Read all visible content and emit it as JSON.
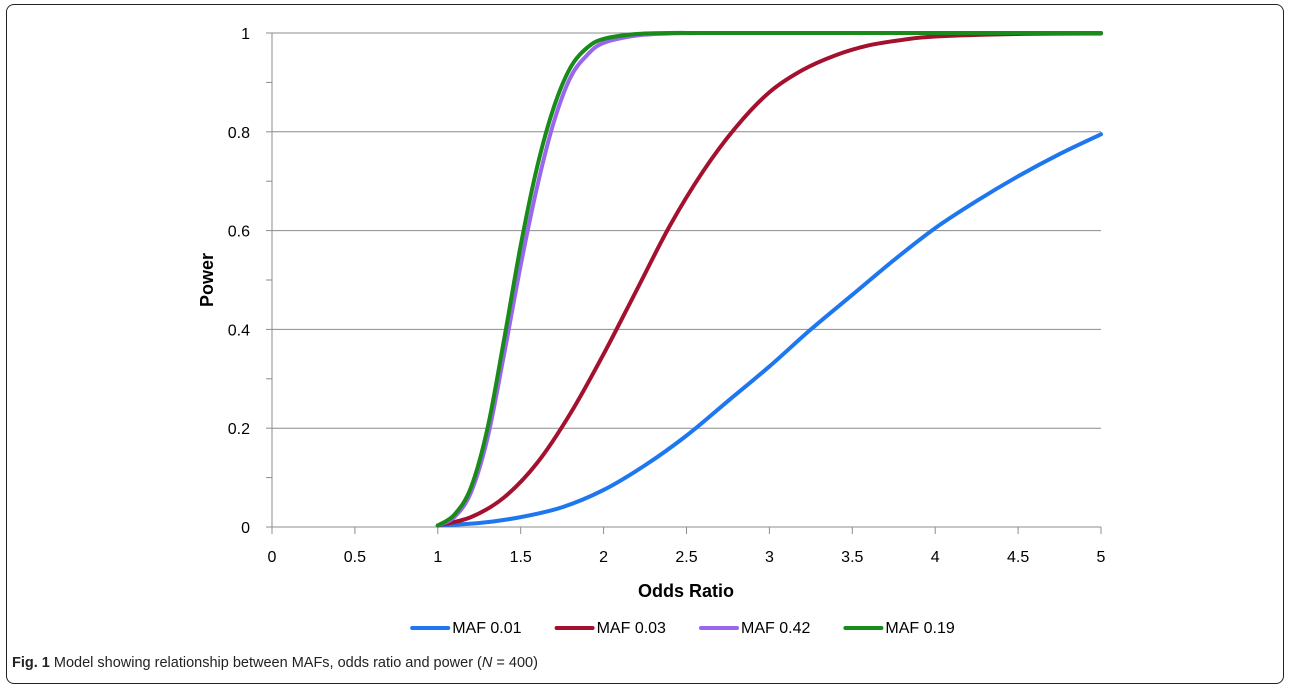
{
  "chart_data": {
    "type": "line",
    "xlabel": "Odds Ratio",
    "ylabel": "Power",
    "xlim": [
      0,
      5
    ],
    "ylim": [
      0,
      1
    ],
    "x_ticks": [
      0,
      0.5,
      1,
      1.5,
      2,
      2.5,
      3,
      3.5,
      4,
      4.5,
      5
    ],
    "x_tick_labels": [
      "0",
      "0.5",
      "1",
      "1.5",
      "2",
      "2.5",
      "3",
      "3.5",
      "4",
      "4.5",
      "5"
    ],
    "y_ticks": [
      0,
      0.2,
      0.4,
      0.6,
      0.8,
      1
    ],
    "y_tick_labels": [
      "0",
      "0.2",
      "0.4",
      "0.6",
      "0.8",
      "1"
    ],
    "grid": "horizontal",
    "legend_position": "bottom",
    "series": [
      {
        "name": "MAF 0.01",
        "color": "#1f77f0",
        "x": [
          1.0,
          1.25,
          1.5,
          1.75,
          2.0,
          2.25,
          2.5,
          2.75,
          3.0,
          3.25,
          3.5,
          3.75,
          4.0,
          4.25,
          4.5,
          4.75,
          5.0
        ],
        "y": [
          0.003,
          0.008,
          0.02,
          0.04,
          0.075,
          0.125,
          0.185,
          0.255,
          0.325,
          0.4,
          0.47,
          0.54,
          0.605,
          0.66,
          0.71,
          0.755,
          0.795
        ]
      },
      {
        "name": "MAF 0.03",
        "color": "#a3112e",
        "x": [
          1.0,
          1.2,
          1.4,
          1.6,
          1.8,
          2.0,
          2.2,
          2.4,
          2.6,
          2.8,
          3.0,
          3.2,
          3.4,
          3.6,
          3.8,
          4.0,
          4.5,
          5.0
        ],
        "y": [
          0.003,
          0.02,
          0.06,
          0.13,
          0.23,
          0.35,
          0.48,
          0.61,
          0.72,
          0.81,
          0.88,
          0.925,
          0.955,
          0.975,
          0.986,
          0.993,
          0.998,
          0.999
        ]
      },
      {
        "name": "MAF 0.42",
        "color": "#9966ee",
        "x": [
          1.0,
          1.1,
          1.2,
          1.3,
          1.4,
          1.5,
          1.6,
          1.7,
          1.8,
          1.9,
          2.0,
          2.2,
          2.4,
          2.6,
          3.0,
          5.0
        ],
        "y": [
          0.003,
          0.02,
          0.07,
          0.18,
          0.35,
          0.53,
          0.69,
          0.82,
          0.91,
          0.955,
          0.98,
          0.995,
          0.999,
          1.0,
          1.0,
          1.0
        ]
      },
      {
        "name": "MAF 0.19",
        "color": "#1a8a1a",
        "x": [
          1.0,
          1.1,
          1.2,
          1.3,
          1.4,
          1.5,
          1.6,
          1.7,
          1.8,
          1.9,
          2.0,
          2.2,
          2.4,
          2.6,
          3.0,
          5.0
        ],
        "y": [
          0.003,
          0.025,
          0.08,
          0.2,
          0.38,
          0.57,
          0.73,
          0.85,
          0.93,
          0.97,
          0.988,
          0.998,
          1.0,
          1.0,
          1.0,
          1.0
        ]
      }
    ]
  },
  "caption": {
    "fig_label": "Fig. 1",
    "text_before_n": " Model showing relationship between MAFs, odds ratio and power (",
    "n_symbol": "N",
    "text_after_n": " = 400)"
  }
}
